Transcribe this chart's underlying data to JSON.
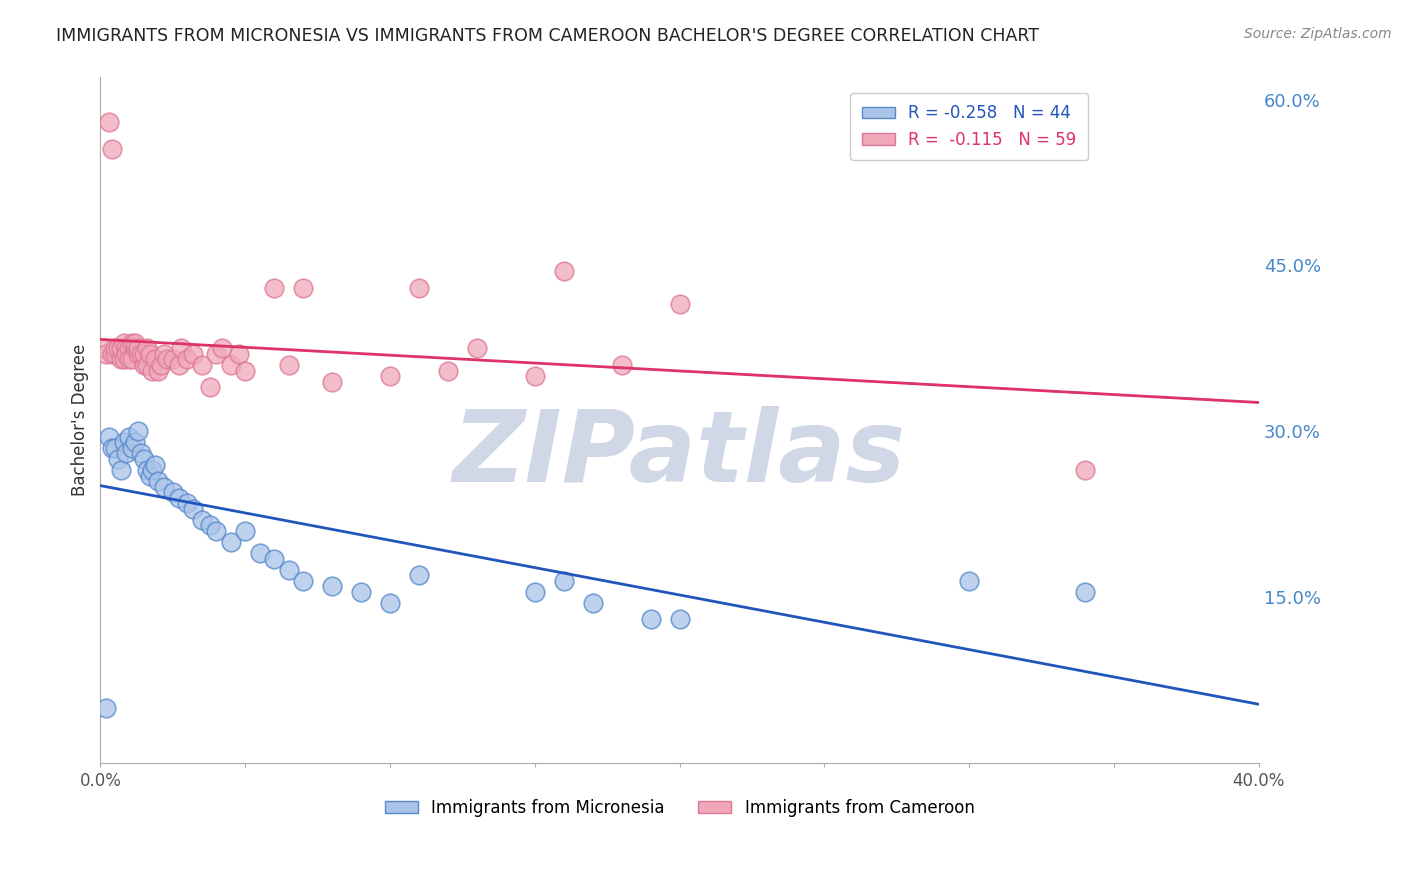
{
  "title": "IMMIGRANTS FROM MICRONESIA VS IMMIGRANTS FROM CAMEROON BACHELOR'S DEGREE CORRELATION CHART",
  "source": "Source: ZipAtlas.com",
  "ylabel": "Bachelor's Degree",
  "xlim": [
    0.0,
    0.4
  ],
  "ylim": [
    0.0,
    0.62
  ],
  "xticks": [
    0.0,
    0.05,
    0.1,
    0.15,
    0.2,
    0.25,
    0.3,
    0.35,
    0.4
  ],
  "yticks_right": [
    0.15,
    0.3,
    0.45,
    0.6
  ],
  "ytick_labels_right": [
    "15.0%",
    "30.0%",
    "45.0%",
    "60.0%"
  ],
  "xtick_labels": [
    "0.0%",
    "",
    "",
    "",
    "",
    "",
    "",
    "",
    "40.0%"
  ],
  "grid_color": "#cccccc",
  "background_color": "#ffffff",
  "micronesia_color": "#aac4e8",
  "cameroon_color": "#f0a8b8",
  "micronesia_edge": "#5588cc",
  "cameroon_edge": "#dd7799",
  "trend_micronesia_color": "#2255bb",
  "trend_cameroon_color": "#dd3366",
  "legend_label_micronesia": "Immigrants from Micronesia",
  "legend_label_cameroon": "Immigrants from Cameroon",
  "R_micronesia": -0.258,
  "N_micronesia": 44,
  "R_cameroon": -0.115,
  "N_cameroon": 59,
  "micronesia_x": [
    0.002,
    0.003,
    0.004,
    0.005,
    0.006,
    0.007,
    0.008,
    0.009,
    0.01,
    0.011,
    0.012,
    0.013,
    0.014,
    0.015,
    0.016,
    0.017,
    0.018,
    0.019,
    0.02,
    0.022,
    0.025,
    0.027,
    0.03,
    0.032,
    0.035,
    0.038,
    0.04,
    0.045,
    0.05,
    0.055,
    0.06,
    0.065,
    0.07,
    0.08,
    0.09,
    0.1,
    0.11,
    0.15,
    0.16,
    0.17,
    0.19,
    0.2,
    0.3,
    0.34
  ],
  "micronesia_y": [
    0.05,
    0.295,
    0.285,
    0.285,
    0.275,
    0.265,
    0.29,
    0.28,
    0.295,
    0.285,
    0.29,
    0.3,
    0.28,
    0.275,
    0.265,
    0.26,
    0.265,
    0.27,
    0.255,
    0.25,
    0.245,
    0.24,
    0.235,
    0.23,
    0.22,
    0.215,
    0.21,
    0.2,
    0.21,
    0.19,
    0.185,
    0.175,
    0.165,
    0.16,
    0.155,
    0.145,
    0.17,
    0.155,
    0.165,
    0.145,
    0.13,
    0.13,
    0.165,
    0.155
  ],
  "cameroon_x": [
    0.001,
    0.002,
    0.003,
    0.004,
    0.004,
    0.005,
    0.005,
    0.006,
    0.007,
    0.007,
    0.008,
    0.008,
    0.009,
    0.009,
    0.01,
    0.01,
    0.011,
    0.011,
    0.012,
    0.012,
    0.013,
    0.013,
    0.014,
    0.015,
    0.015,
    0.016,
    0.016,
    0.017,
    0.018,
    0.019,
    0.02,
    0.021,
    0.022,
    0.023,
    0.025,
    0.027,
    0.028,
    0.03,
    0.032,
    0.035,
    0.038,
    0.04,
    0.042,
    0.045,
    0.048,
    0.05,
    0.06,
    0.065,
    0.07,
    0.08,
    0.1,
    0.11,
    0.12,
    0.13,
    0.15,
    0.16,
    0.18,
    0.2,
    0.34
  ],
  "cameroon_y": [
    0.375,
    0.37,
    0.58,
    0.555,
    0.37,
    0.37,
    0.375,
    0.375,
    0.365,
    0.375,
    0.365,
    0.38,
    0.375,
    0.37,
    0.375,
    0.365,
    0.365,
    0.38,
    0.375,
    0.38,
    0.37,
    0.375,
    0.37,
    0.36,
    0.37,
    0.36,
    0.375,
    0.37,
    0.355,
    0.365,
    0.355,
    0.36,
    0.37,
    0.365,
    0.365,
    0.36,
    0.375,
    0.365,
    0.37,
    0.36,
    0.34,
    0.37,
    0.375,
    0.36,
    0.37,
    0.355,
    0.43,
    0.36,
    0.43,
    0.345,
    0.35,
    0.43,
    0.355,
    0.375,
    0.35,
    0.445,
    0.36,
    0.415,
    0.265
  ],
  "watermark_text": "ZIPatlas",
  "watermark_color": "#d0d8e8",
  "watermark_fontsize": 72
}
